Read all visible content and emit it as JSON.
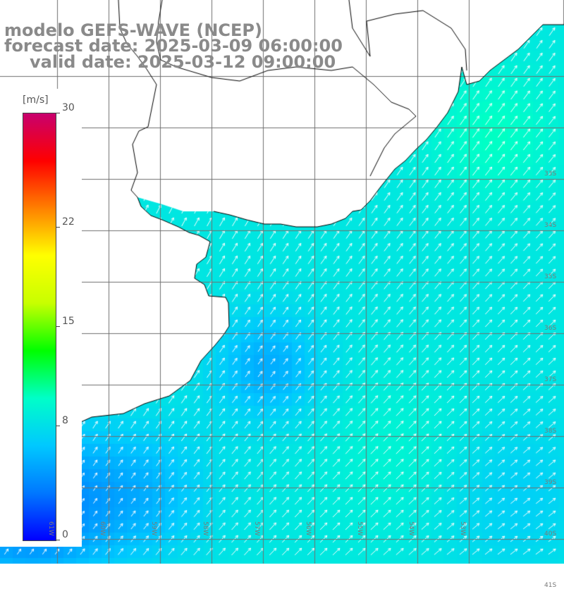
{
  "title": {
    "line1": "modelo GEFS-WAVE (NCEP)",
    "line2": "forecast date: 2025-03-09 06:00:00",
    "line3": "valid date: 2025-03-12 09:00:00"
  },
  "colorbar": {
    "unit": "[m/s]",
    "min": 0,
    "max": 30,
    "ticks": [
      {
        "value": 30,
        "label": "30"
      },
      {
        "value": 22,
        "label": "22"
      },
      {
        "value": 15,
        "label": "15"
      },
      {
        "value": 8,
        "label": "8"
      },
      {
        "value": 0,
        "label": "0"
      }
    ],
    "stops": [
      "#0000ff",
      "#0078ff",
      "#00c8ff",
      "#00ffc8",
      "#00ff00",
      "#c8ff00",
      "#ffff00",
      "#ff8000",
      "#ff0000",
      "#c8006e"
    ]
  },
  "map": {
    "variable": "wind speed",
    "lon_range": [
      -62,
      -52
    ],
    "lat_range": [
      -42,
      -30
    ],
    "grid_lon": [
      -61,
      -60,
      -59,
      -58,
      -57,
      -56,
      -55,
      -54,
      -53
    ],
    "grid_lat": [
      -31,
      -32,
      -33,
      -34,
      -35,
      -36,
      -37,
      -38,
      -39,
      -40,
      -41
    ],
    "lon_labels": [
      "61W",
      "60W",
      "59W",
      "58W",
      "57W",
      "56W",
      "55W",
      "54W",
      "53W"
    ],
    "lat_labels": [
      "33S",
      "34S",
      "35S",
      "36S",
      "37S",
      "38S",
      "39S",
      "40S",
      "41S"
    ],
    "land_color": "#ffffff",
    "grid_color": "#707070",
    "coast_color": "#000000",
    "arrow_color": "#ffffff"
  }
}
